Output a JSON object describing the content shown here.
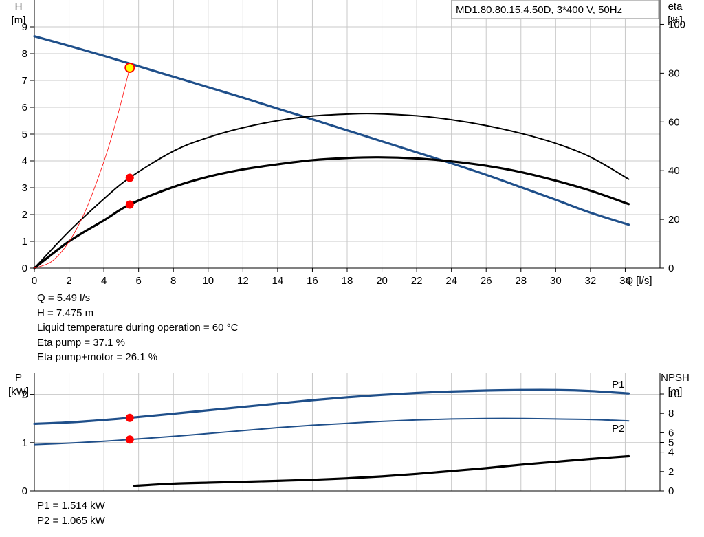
{
  "chart_data": [
    {
      "type": "line",
      "title": "MD1.80.80.15.4.50D, 3*400 V, 50Hz",
      "xlabel": "Q [l/s]",
      "ylabel": [
        "H",
        "[m]"
      ],
      "y2label": [
        "eta",
        "[%]"
      ],
      "xlim": [
        0,
        36
      ],
      "ylim": [
        0,
        10
      ],
      "y2lim": [
        0,
        110
      ],
      "x_ticks": [
        0,
        2,
        4,
        6,
        8,
        10,
        12,
        14,
        16,
        18,
        20,
        22,
        24,
        26,
        28,
        30,
        32,
        34
      ],
      "y_ticks": [
        0,
        1,
        2,
        3,
        4,
        5,
        6,
        7,
        8,
        9
      ],
      "y2_ticks": [
        0,
        20,
        40,
        60,
        80,
        100
      ],
      "grid": true,
      "series": [
        {
          "key": "H",
          "color": "#1f4f8a",
          "width": 3.2,
          "x": [
            0,
            2,
            4,
            6,
            8,
            10,
            12,
            14,
            16,
            18,
            20,
            22,
            24,
            26,
            28,
            30,
            32,
            34.2
          ],
          "y": [
            8.65,
            8.29,
            7.92,
            7.53,
            7.14,
            6.75,
            6.36,
            5.95,
            5.55,
            5.14,
            4.73,
            4.32,
            3.91,
            3.48,
            3.02,
            2.55,
            2.07,
            1.62
          ]
        },
        {
          "key": "eta_pump",
          "axis": "y2",
          "color": "#000000",
          "width": 2.0,
          "x": [
            0,
            2,
            4,
            5.49,
            8,
            10,
            12,
            14,
            16,
            18,
            19.5,
            22,
            24,
            26,
            28,
            30,
            32,
            34.2
          ],
          "y": [
            0,
            15.1,
            28.4,
            37.1,
            48.0,
            53.6,
            57.6,
            60.5,
            62.4,
            63.2,
            63.4,
            62.5,
            60.9,
            58.5,
            55.3,
            51.2,
            45.6,
            36.5
          ]
        },
        {
          "key": "eta_pump_motor",
          "axis": "y2",
          "color": "#000000",
          "width": 3.2,
          "x": [
            0,
            2,
            4,
            5.49,
            8,
            10,
            12,
            14,
            16,
            18,
            19.8,
            22,
            24,
            26,
            28,
            30,
            32,
            34.2
          ],
          "y": [
            0,
            11.0,
            19.6,
            26.1,
            33.3,
            37.5,
            40.5,
            42.6,
            44.3,
            45.2,
            45.5,
            45.0,
            43.8,
            42.0,
            39.4,
            35.9,
            31.8,
            26.3
          ]
        },
        {
          "key": "system_curve",
          "color": "#ff0000",
          "width": 0.8,
          "x": [
            0,
            1,
            2,
            3,
            4,
            4.5,
            5,
            5.49
          ],
          "y": [
            0,
            0.25,
            0.99,
            2.23,
            3.97,
            5.02,
            6.2,
            7.475
          ]
        }
      ],
      "markers": [
        {
          "x": 5.49,
          "y": 7.475,
          "style": "duty"
        },
        {
          "x": 5.49,
          "y": 37.1,
          "axis": "y2",
          "style": "dot"
        },
        {
          "x": 5.49,
          "y": 26.1,
          "axis": "y2",
          "style": "dot"
        }
      ]
    },
    {
      "type": "line",
      "ylabel": [
        "P",
        "[kW]"
      ],
      "y2label": [
        "NPSH",
        "[m]"
      ],
      "xlim": [
        0,
        36
      ],
      "ylim": [
        0,
        2.45
      ],
      "y2lim": [
        0,
        12.2
      ],
      "y_ticks": [
        0,
        1,
        2
      ],
      "y2_ticks": [
        0,
        2,
        4,
        5,
        6,
        8,
        10
      ],
      "grid": true,
      "series": [
        {
          "key": "P1",
          "name": "P1",
          "color": "#1f4f8a",
          "width": 3.2,
          "x": [
            0,
            2,
            4,
            5.49,
            8,
            10,
            12,
            14,
            16,
            18,
            20,
            22,
            24,
            26,
            28,
            30,
            32,
            34.2
          ],
          "y": [
            1.39,
            1.42,
            1.47,
            1.514,
            1.6,
            1.67,
            1.74,
            1.81,
            1.88,
            1.94,
            1.99,
            2.03,
            2.06,
            2.08,
            2.09,
            2.09,
            2.07,
            2.02
          ]
        },
        {
          "key": "P2",
          "name": "P2",
          "color": "#1f4f8a",
          "width": 2.0,
          "x": [
            0,
            2,
            4,
            5.49,
            8,
            10,
            12,
            14,
            16,
            18,
            20,
            22,
            24,
            26,
            28,
            30,
            32,
            34.2
          ],
          "y": [
            0.96,
            0.99,
            1.03,
            1.065,
            1.13,
            1.19,
            1.25,
            1.31,
            1.36,
            1.4,
            1.44,
            1.47,
            1.49,
            1.5,
            1.5,
            1.49,
            1.48,
            1.45
          ]
        },
        {
          "key": "NPSH",
          "axis": "y2",
          "color": "#000000",
          "width": 3.2,
          "x": [
            5.75,
            8,
            10,
            12,
            14,
            16,
            18,
            20,
            22,
            24,
            26,
            28,
            30,
            32,
            34.2
          ],
          "y": [
            0.52,
            0.75,
            0.85,
            0.94,
            1.04,
            1.15,
            1.3,
            1.5,
            1.75,
            2.05,
            2.35,
            2.7,
            3.0,
            3.3,
            3.58
          ]
        }
      ],
      "markers": [
        {
          "x": 5.49,
          "y": 1.514,
          "style": "dot"
        },
        {
          "x": 5.49,
          "y": 1.065,
          "style": "dot"
        }
      ]
    }
  ],
  "info_top": [
    "Q = 5.49 l/s",
    "H = 7.475 m",
    "Liquid temperature during operation = 60 °C",
    "Eta pump = 37.1 %",
    "Eta pump+motor = 26.1 %"
  ],
  "info_bottom": [
    "P1 = 1.514 kW",
    "P2 = 1.065 kW"
  ]
}
